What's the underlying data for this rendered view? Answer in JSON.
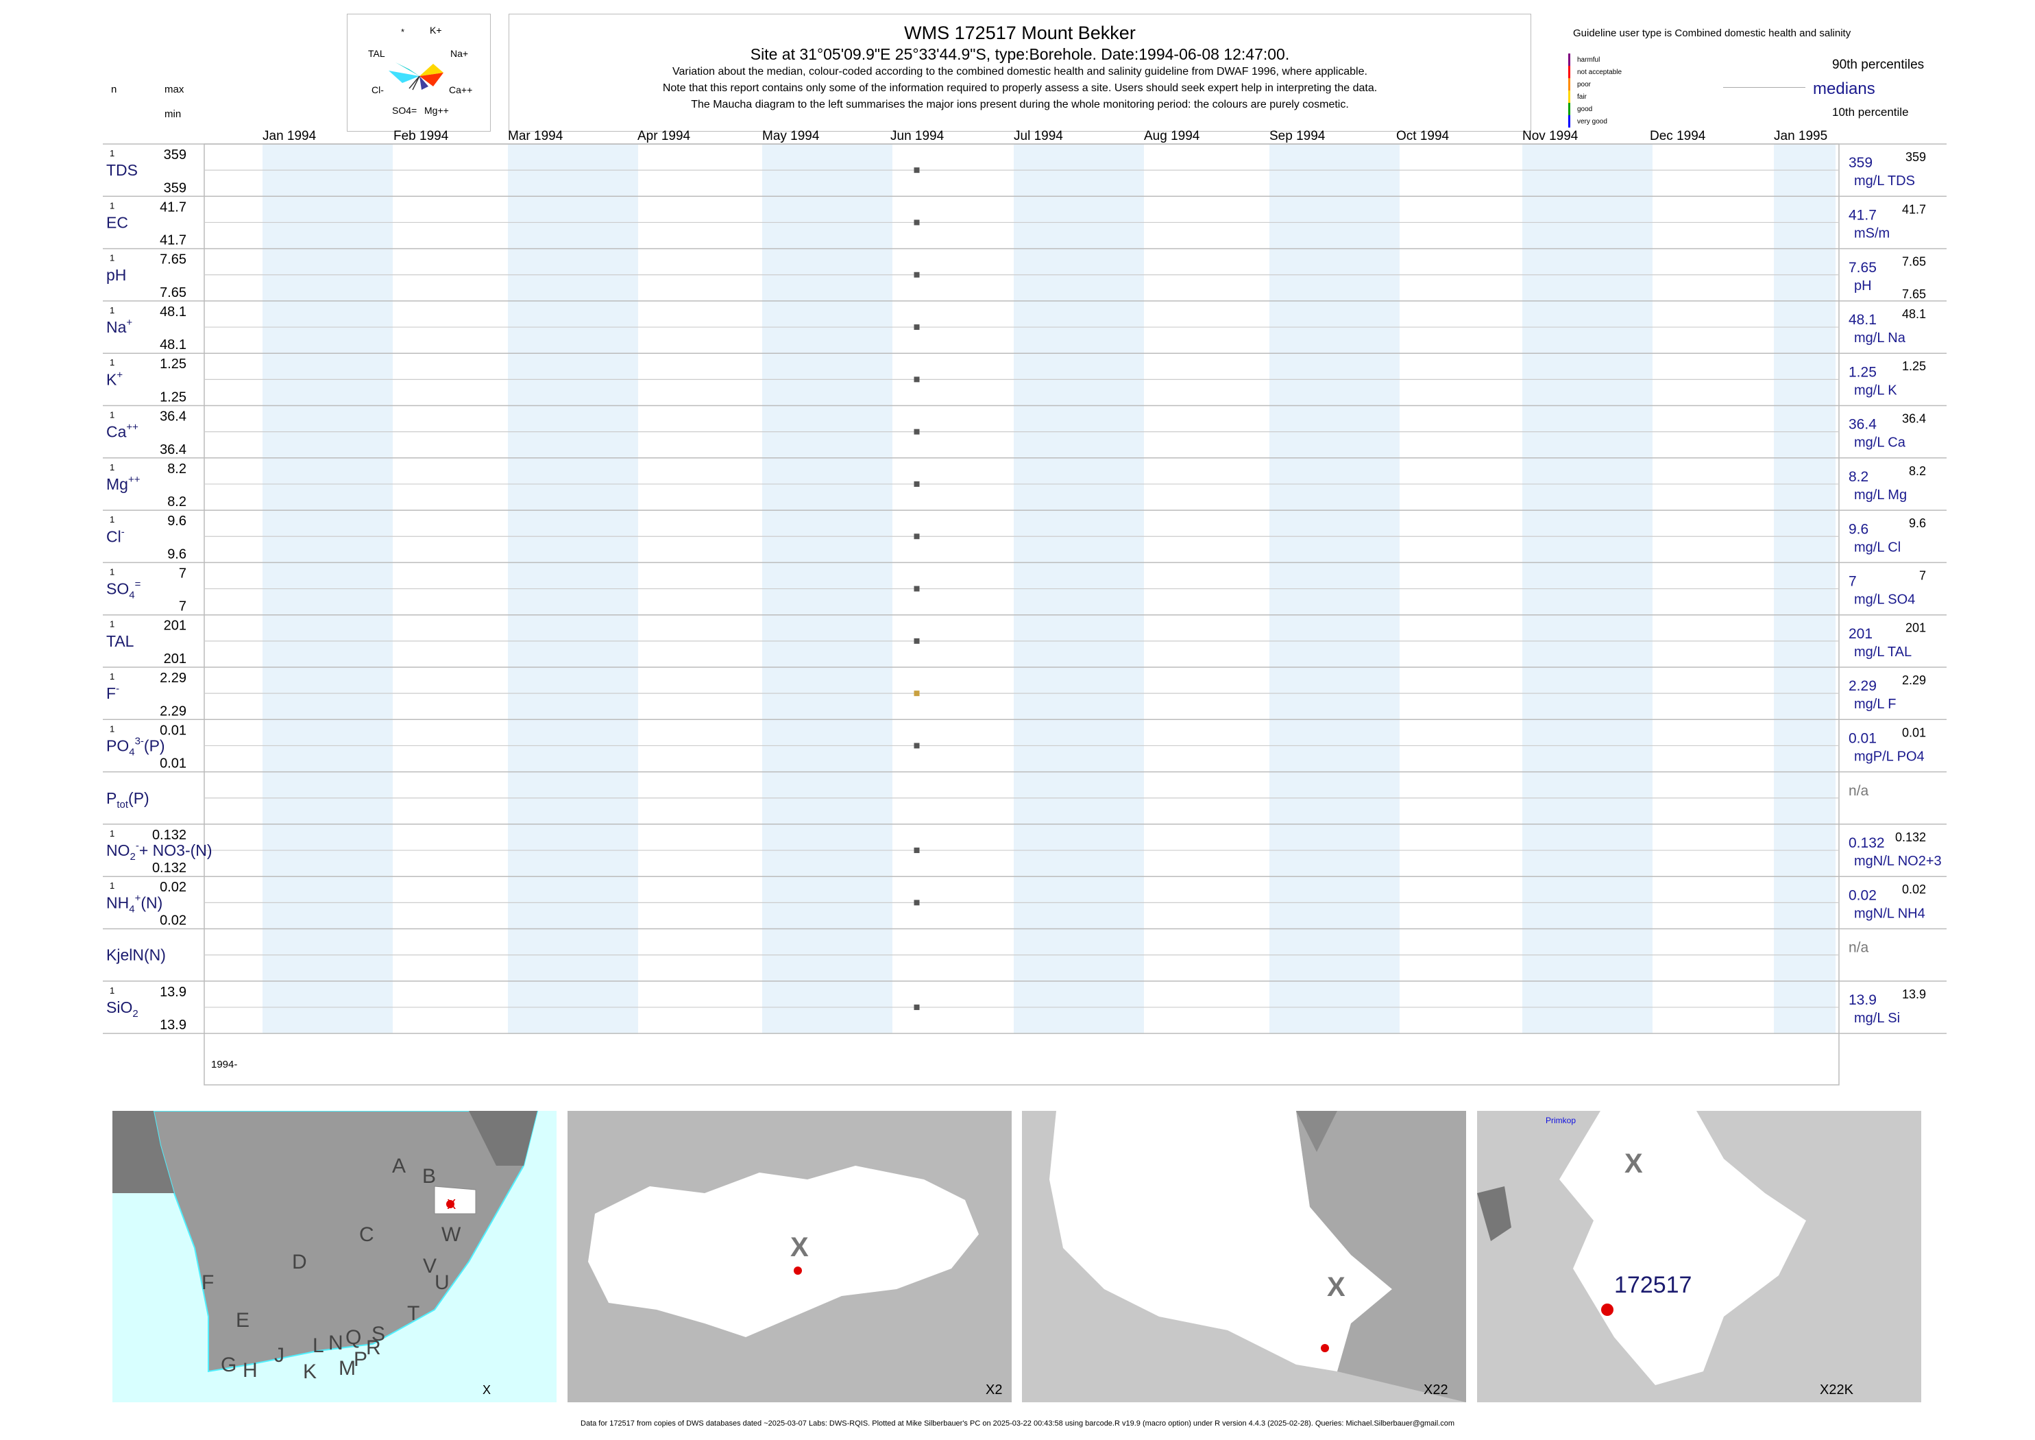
{
  "header": {
    "title": "WMS 172517  Mount Bekker",
    "subtitle": "Site at 31°05'09.9\"E 25°33'44.9\"S, type:Borehole. Date:1994-06-08 12:47:00.",
    "notes": [
      "Variation about the median,  colour-coded according to the combined domestic health and salinity guideline from DWAF 1996, where applicable.",
      "Note that this report contains only some of the information required to properly assess a site. Users should seek expert help in interpreting the data.",
      "The Maucha diagram to the left summarises the major ions present during the whole monitoring period: the colours are purely cosmetic."
    ]
  },
  "maucha": {
    "labels": [
      "*",
      "K+",
      "TAL",
      "Na+",
      "Cl-",
      "Ca++",
      "SO4=",
      "Mg++"
    ]
  },
  "left_header": {
    "n": "n",
    "max": "max",
    "min": "min"
  },
  "guideline": {
    "title": "Guideline user type is Combined domestic health and salinity",
    "levels": [
      {
        "label": "harmful",
        "color": "#800080"
      },
      {
        "label": "not acceptable",
        "color": "#ff0000"
      },
      {
        "label": "poor",
        "color": "#ff8c00"
      },
      {
        "label": "fair",
        "color": "#ffd700"
      },
      {
        "label": "good",
        "color": "#00a000"
      },
      {
        "label": "very good",
        "color": "#0000ff"
      }
    ],
    "p90": "90th percentiles",
    "medians": "medians",
    "p10": "10th percentile"
  },
  "months": [
    "Jan 1994",
    "Feb 1994",
    "Mar 1994",
    "Apr 1994",
    "May 1994",
    "Jun 1994",
    "Jul 1994",
    "Aug 1994",
    "Sep 1994",
    "Oct 1994",
    "Nov 1994",
    "Dec 1994",
    "Jan 1995"
  ],
  "year_label": "1994-",
  "chart_data": {
    "type": "scatter",
    "sample_date": "1994-06-08",
    "x_range": [
      "1994-01-01",
      "1995-01-01"
    ],
    "rows": [
      {
        "name": "TDS",
        "label": "TDS",
        "n": "1",
        "max": "359",
        "min": "359",
        "median": "359",
        "unit": "mg/L TDS",
        "p90": "359",
        "p10": "",
        "value": 359,
        "color": "#555555"
      },
      {
        "name": "EC",
        "label": "EC",
        "n": "1",
        "max": "41.7",
        "min": "41.7",
        "median": "41.7",
        "unit": "mS/m",
        "p90": "41.7",
        "p10": "",
        "value": 41.7,
        "color": "#555555"
      },
      {
        "name": "pH",
        "label": "pH",
        "n": "1",
        "max": "7.65",
        "min": "7.65",
        "median": "7.65",
        "unit": "pH",
        "p90": "7.65",
        "p10": "7.65",
        "value": 7.65,
        "color": "#555555"
      },
      {
        "name": "Na",
        "label": "Na",
        "sup": "+",
        "n": "1",
        "max": "48.1",
        "min": "48.1",
        "median": "48.1",
        "unit": "mg/L Na",
        "p90": "48.1",
        "p10": "",
        "value": 48.1,
        "color": "#555555"
      },
      {
        "name": "K",
        "label": "K",
        "sup": "+",
        "n": "1",
        "max": "1.25",
        "min": "1.25",
        "median": "1.25",
        "unit": "mg/L K",
        "p90": "1.25",
        "p10": "",
        "value": 1.25,
        "color": "#555555"
      },
      {
        "name": "Ca",
        "label": "Ca",
        "sup": "++",
        "n": "1",
        "max": "36.4",
        "min": "36.4",
        "median": "36.4",
        "unit": "mg/L Ca",
        "p90": "36.4",
        "p10": "",
        "value": 36.4,
        "color": "#555555"
      },
      {
        "name": "Mg",
        "label": "Mg",
        "sup": "++",
        "n": "1",
        "max": "8.2",
        "min": "8.2",
        "median": "8.2",
        "unit": "mg/L Mg",
        "p90": "8.2",
        "p10": "",
        "value": 8.2,
        "color": "#555555"
      },
      {
        "name": "Cl",
        "label": "Cl",
        "sup": "-",
        "n": "1",
        "max": "9.6",
        "min": "9.6",
        "median": "9.6",
        "unit": "mg/L Cl",
        "p90": "9.6",
        "p10": "",
        "value": 9.6,
        "color": "#555555"
      },
      {
        "name": "SO4",
        "label": "SO",
        "sub": "4",
        "sup": "=",
        "n": "1",
        "max": "7",
        "min": "7",
        "median": "7",
        "unit": "mg/L SO4",
        "p90": "7",
        "p10": "",
        "value": 7,
        "color": "#555555"
      },
      {
        "name": "TAL",
        "label": "TAL",
        "n": "1",
        "max": "201",
        "min": "201",
        "median": "201",
        "unit": "mg/L TAL",
        "p90": "201",
        "p10": "",
        "value": 201,
        "color": "#555555"
      },
      {
        "name": "F",
        "label": "F",
        "sup": "-",
        "n": "1",
        "max": "2.29",
        "min": "2.29",
        "median": "2.29",
        "unit": "mg/L F",
        "p90": "2.29",
        "p10": "",
        "value": 2.29,
        "color": "#c8a040"
      },
      {
        "name": "PO4",
        "label": "PO",
        "sub": "4",
        "sup": "3-",
        "tail": "(P)",
        "n": "1",
        "max": "0.01",
        "min": "0.01",
        "median": "0.01",
        "unit": "mgP/L PO4",
        "p90": "0.01",
        "p10": "",
        "value": 0.01,
        "color": "#555555"
      },
      {
        "name": "Ptot",
        "label": "P",
        "sub": "tot",
        "tail": "(P)",
        "n": "",
        "max": "",
        "min": "",
        "median": "n/a",
        "unit": "",
        "p90": "",
        "p10": "",
        "value": null,
        "color": "#555555"
      },
      {
        "name": "NO2NO3",
        "label": "NO",
        "sub": "2",
        "sup": "-",
        "tail": "+ NO3-(N)",
        "n": "1",
        "max": "0.132",
        "min": "0.132",
        "median": "0.132",
        "unit": "mgN/L NO2+3",
        "p90": "0.132",
        "p10": "",
        "value": 0.132,
        "color": "#555555"
      },
      {
        "name": "NH4",
        "label": "NH",
        "sub": "4",
        "sup": "+",
        "tail": "(N)",
        "n": "1",
        "max": "0.02",
        "min": "0.02",
        "median": "0.02",
        "unit": "mgN/L NH4",
        "p90": "0.02",
        "p10": "",
        "value": 0.02,
        "color": "#555555"
      },
      {
        "name": "KjelN",
        "label": "KjelN(N)",
        "n": "",
        "max": "",
        "min": "",
        "median": "n/a",
        "unit": "",
        "p90": "",
        "p10": "",
        "value": null,
        "color": "#555555"
      },
      {
        "name": "SiO2",
        "label": "SiO",
        "sub": "2",
        "n": "1",
        "max": "13.9",
        "min": "13.9",
        "median": "13.9",
        "unit": "mg/L Si",
        "p90": "13.9",
        "p10": "",
        "value": 13.9,
        "color": "#555555"
      }
    ]
  },
  "maps": [
    {
      "corner": "X",
      "letters": [
        "A",
        "B",
        "C",
        "D",
        "E",
        "F",
        "G",
        "H",
        "J",
        "K",
        "L",
        "M",
        "N",
        "P",
        "Q",
        "R",
        "S",
        "T",
        "U",
        "V",
        "W",
        "X"
      ]
    },
    {
      "corner": "X2",
      "big": "X"
    },
    {
      "corner": "X22",
      "big": "X"
    },
    {
      "corner": "X22K",
      "big": "X",
      "site": "172517",
      "town": "Primkop"
    }
  ],
  "footer": "Data for 172517 from copies of DWS databases dated ~2025-03-07 Labs: DWS-RQIS. Plotted at Mike Silberbauer's PC on 2025-03-22 00:43:58 using barcode.R v19.9 (macro option) under R version 4.4.3 (2025-02-28). Queries: Michael.Silberbauer@gmail.com"
}
